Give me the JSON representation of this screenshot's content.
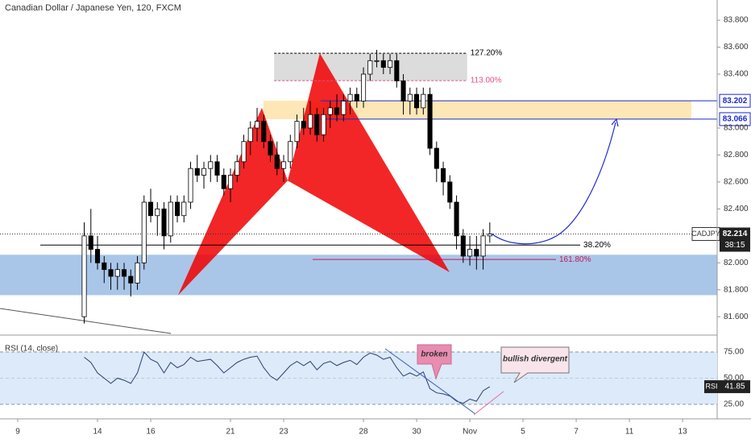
{
  "chart_data": [
    {
      "type": "candlestick",
      "title": "Canadian Dollar / Japanese Yen, 120, FXCM",
      "symbol": "CADJPY",
      "last_price": {
        "value": 82.214,
        "label": "82.214"
      },
      "countdown": "38:15",
      "x": [
        2.5,
        2.75,
        3.0,
        3.25,
        3.5,
        3.75,
        4.0,
        4.25,
        4.5,
        4.75,
        5.0,
        5.25,
        5.5,
        5.75,
        6.0,
        6.25,
        6.5,
        6.75,
        7.0,
        7.25,
        7.5,
        7.75,
        8.0,
        8.25,
        8.5,
        8.75,
        9.0,
        9.25,
        9.5,
        9.75,
        10.0,
        10.25,
        10.5,
        10.75,
        11.0,
        11.25,
        11.5,
        11.75,
        12.0,
        12.25,
        12.5,
        12.75,
        13.0,
        13.25,
        13.5,
        13.75,
        14.0,
        14.25,
        14.5,
        14.75,
        15.0,
        15.25,
        15.5,
        15.75,
        16.0,
        16.25,
        16.5,
        16.75,
        17.0,
        17.25,
        17.5,
        17.75
      ],
      "open": [
        81.6,
        82.2,
        82.1,
        82.0,
        81.95,
        81.9,
        81.95,
        81.9,
        81.85,
        82.0,
        82.45,
        82.35,
        82.4,
        82.2,
        82.45,
        82.35,
        82.45,
        82.7,
        82.65,
        82.7,
        82.75,
        82.65,
        82.55,
        82.65,
        82.75,
        82.9,
        83.0,
        83.05,
        82.9,
        82.8,
        82.7,
        82.75,
        82.9,
        83.05,
        83.0,
        83.1,
        82.95,
        83.1,
        83.15,
        83.1,
        83.2,
        83.25,
        83.2,
        83.4,
        83.5,
        83.5,
        83.45,
        83.5,
        83.35,
        83.2,
        83.25,
        83.15,
        83.25,
        82.85,
        82.7,
        82.6,
        82.45,
        82.2,
        82.05,
        82.1,
        82.05,
        82.2
      ],
      "high": [
        82.3,
        82.4,
        82.2,
        82.05,
        82.0,
        82.0,
        82.0,
        81.95,
        82.05,
        82.5,
        82.55,
        82.45,
        82.45,
        82.5,
        82.5,
        82.5,
        82.75,
        82.8,
        82.75,
        82.8,
        82.8,
        82.7,
        82.7,
        82.8,
        82.95,
        83.05,
        83.15,
        83.1,
        82.95,
        82.9,
        82.8,
        82.95,
        83.1,
        83.15,
        83.2,
        83.15,
        83.15,
        83.2,
        83.25,
        83.25,
        83.3,
        83.3,
        83.45,
        83.55,
        83.58,
        83.55,
        83.55,
        83.55,
        83.4,
        83.3,
        83.3,
        83.3,
        83.3,
        82.9,
        82.75,
        82.65,
        82.5,
        82.25,
        82.2,
        82.2,
        82.25,
        82.3
      ],
      "low": [
        81.55,
        82.0,
        81.95,
        81.85,
        81.8,
        81.8,
        81.8,
        81.75,
        81.8,
        81.95,
        82.3,
        82.2,
        82.1,
        82.15,
        82.3,
        82.3,
        82.4,
        82.6,
        82.55,
        82.6,
        82.6,
        82.5,
        82.45,
        82.6,
        82.7,
        82.8,
        82.9,
        82.85,
        82.75,
        82.65,
        82.6,
        82.7,
        82.85,
        82.95,
        82.95,
        82.9,
        82.9,
        83.0,
        83.05,
        83.05,
        83.1,
        83.15,
        83.15,
        83.35,
        83.45,
        83.4,
        83.4,
        83.3,
        83.1,
        83.1,
        83.1,
        83.1,
        82.8,
        82.6,
        82.5,
        82.4,
        82.1,
        82.0,
        81.98,
        81.95,
        81.95,
        82.15
      ],
      "close": [
        82.2,
        82.1,
        82.0,
        81.95,
        81.9,
        81.95,
        81.9,
        81.85,
        82.0,
        82.45,
        82.35,
        82.4,
        82.2,
        82.45,
        82.35,
        82.45,
        82.7,
        82.65,
        82.7,
        82.75,
        82.65,
        82.55,
        82.65,
        82.75,
        82.9,
        83.0,
        83.05,
        82.9,
        82.8,
        82.7,
        82.75,
        82.9,
        83.05,
        83.0,
        83.1,
        82.95,
        83.1,
        83.15,
        83.1,
        83.2,
        83.25,
        83.2,
        83.4,
        83.5,
        83.5,
        83.45,
        83.5,
        83.35,
        83.2,
        83.25,
        83.15,
        83.25,
        82.85,
        82.7,
        82.6,
        82.45,
        82.2,
        82.05,
        82.1,
        82.05,
        82.2,
        82.214
      ],
      "up_color": "#ffffff",
      "down_color": "#000000",
      "xlim": [
        -0.667,
        26.3
      ],
      "xticks": [
        {
          "value": 0,
          "label": "9"
        },
        {
          "value": 3,
          "label": "14"
        },
        {
          "value": 5,
          "label": "16"
        },
        {
          "value": 8,
          "label": "21"
        },
        {
          "value": 10,
          "label": "23"
        },
        {
          "value": 13,
          "label": "28"
        },
        {
          "value": 15,
          "label": "30"
        },
        {
          "value": 17,
          "label": "Nov"
        },
        {
          "value": 19,
          "label": "5"
        },
        {
          "value": 21,
          "label": "7"
        },
        {
          "value": 23,
          "label": "11"
        },
        {
          "value": 25,
          "label": "13"
        }
      ],
      "ylim": [
        81.47,
        83.95
      ],
      "yticks": [
        {
          "value": 83.8,
          "label": "83.800"
        },
        {
          "value": 83.6,
          "label": "83.600"
        },
        {
          "value": 83.4,
          "label": "83.400"
        },
        {
          "value": 83.0,
          "label": "83.000"
        },
        {
          "value": 82.8,
          "label": "82.800"
        },
        {
          "value": 82.6,
          "label": "82.600"
        },
        {
          "value": 82.4,
          "label": "82.400"
        },
        {
          "value": 82.0,
          "label": "82.000"
        },
        {
          "value": 81.8,
          "label": "81.800"
        },
        {
          "value": 81.6,
          "label": "81.600"
        }
      ],
      "zones": [
        {
          "top": 82.06,
          "bottom": 81.76,
          "x0": -0.667,
          "x1": 26.3,
          "color": "#a9c6e8"
        },
        {
          "top": 83.202,
          "bottom": 83.066,
          "x0": 9.24,
          "x1": 25.33,
          "color": "#fde7b6"
        },
        {
          "top": 83.555,
          "bottom": 83.352,
          "x0": 9.64,
          "x1": 16.9,
          "color": "#dcdcdc"
        }
      ],
      "levels": [
        {
          "value": 83.202,
          "label": "83.202",
          "x0": 11.39
        },
        {
          "value": 83.066,
          "label": "83.066",
          "x0": 11.39
        }
      ],
      "level_color": "#1e2ad0",
      "fib_levels": [
        {
          "value": 83.555,
          "label": "127.20%",
          "x0": 9.64,
          "x1": 16.9,
          "color": "#000000",
          "dash": true
        },
        {
          "value": 83.352,
          "label": "113.00%",
          "x0": 9.64,
          "x1": 16.9,
          "color": "#e0508a",
          "dash": true
        },
        {
          "value": 82.132,
          "label": "38.20%",
          "x0": 0.85,
          "x1": 21.15,
          "color": "#000000",
          "dash": false
        },
        {
          "value": 82.025,
          "label": "161.80%",
          "x0": 11.09,
          "x1": 20.24,
          "color": "#c2185b",
          "dash": false
        }
      ],
      "pattern": {
        "x": [
          6.03,
          9.18,
          10.15,
          11.36,
          16.24
        ],
        "y": [
          81.76,
          83.15,
          82.61,
          83.555,
          81.93
        ],
        "color": "#f00000"
      }
    },
    {
      "type": "line",
      "title": "RSI (14, close)",
      "name": "RSI",
      "last": {
        "value": 41.85,
        "label": "41.85"
      },
      "x": [
        2.5,
        2.75,
        3.0,
        3.25,
        3.5,
        3.75,
        4.0,
        4.25,
        4.5,
        4.75,
        5.0,
        5.25,
        5.5,
        5.75,
        6.0,
        6.25,
        6.5,
        6.75,
        7.0,
        7.25,
        7.5,
        7.75,
        8.0,
        8.25,
        8.5,
        8.75,
        9.0,
        9.25,
        9.5,
        9.75,
        10.0,
        10.25,
        10.5,
        10.75,
        11.0,
        11.25,
        11.5,
        11.75,
        12.0,
        12.25,
        12.5,
        12.75,
        13.0,
        13.25,
        13.5,
        13.75,
        14.0,
        14.25,
        14.5,
        14.75,
        15.0,
        15.25,
        15.5,
        15.75,
        16.0,
        16.25,
        16.5,
        16.75,
        17.0,
        17.25,
        17.5,
        17.75
      ],
      "values": [
        70,
        65,
        55,
        50,
        45,
        50,
        48,
        45,
        55,
        75,
        68,
        65,
        55,
        65,
        60,
        63,
        70,
        66,
        67,
        68,
        62,
        55,
        60,
        65,
        68,
        70,
        71,
        60,
        52,
        48,
        55,
        62,
        66,
        62,
        66,
        58,
        64,
        66,
        62,
        65,
        67,
        63,
        70,
        74,
        72,
        68,
        70,
        60,
        52,
        55,
        52,
        56,
        40,
        36,
        35,
        33,
        28,
        26,
        30,
        28,
        38,
        41.85
      ],
      "color": "#2c3e70",
      "ylim": [
        15,
        89.6
      ],
      "yticks": [
        {
          "value": 75,
          "label": "75.00"
        },
        {
          "value": 50,
          "label": "50.00"
        },
        {
          "value": 25,
          "label": "25.00"
        }
      ],
      "band": [
        25,
        75
      ],
      "band_color": "#dceaf9",
      "annotations": [
        "broken",
        "bullish divergent"
      ]
    }
  ]
}
